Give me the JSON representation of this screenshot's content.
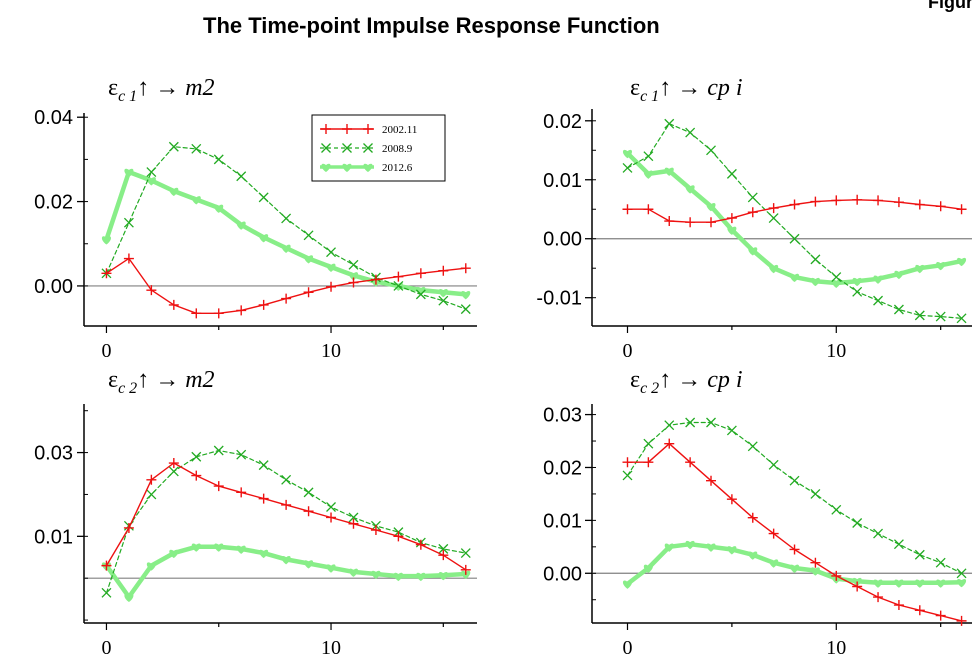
{
  "page": {
    "title": "The Time-point Impulse Response Function",
    "corner_label": "Figur"
  },
  "colors": {
    "series_2002_11": "#ee1111",
    "series_2008_9": "#22aa22",
    "series_2012_6": "#88ee88",
    "zero_line": "#808080"
  },
  "legend": {
    "placement": "top-right of first panel",
    "entries": [
      {
        "label": "2002.11",
        "color": "#ee1111",
        "marker": "plus",
        "dash": "solid"
      },
      {
        "label": "2008.9",
        "color": "#22aa22",
        "marker": "cross",
        "dash": "dashed"
      },
      {
        "label": "2012.6",
        "color": "#88ee88",
        "marker": "heart",
        "dash": "thick"
      }
    ]
  },
  "chart_data": [
    {
      "type": "line",
      "title": "ε_c1 ↑ → m2",
      "title_parts": {
        "eps": "ε",
        "sub": "c 1",
        "arrow": "↑ →",
        "var": "m2"
      },
      "x": [
        0,
        1,
        2,
        3,
        4,
        5,
        6,
        7,
        8,
        9,
        10,
        11,
        12,
        13,
        14,
        15,
        16
      ],
      "xticks": [
        0,
        10
      ],
      "xlim": [
        -1,
        16.5
      ],
      "ylim": [
        -0.0095,
        0.041
      ],
      "yticks": [
        0.0,
        0.02,
        0.04
      ],
      "ytick_labels": [
        "0.00",
        "0.02",
        "0.04"
      ],
      "zero_line": true,
      "series": [
        {
          "name": "2002.11",
          "values": [
            0.003,
            0.0065,
            -0.001,
            -0.0045,
            -0.0065,
            -0.0065,
            -0.0058,
            -0.0045,
            -0.003,
            -0.0015,
            -0.0002,
            0.0008,
            0.0015,
            0.0022,
            0.003,
            0.0036,
            0.0042
          ]
        },
        {
          "name": "2008.9",
          "values": [
            0.003,
            0.015,
            0.027,
            0.033,
            0.0325,
            0.03,
            0.026,
            0.021,
            0.016,
            0.012,
            0.008,
            0.005,
            0.002,
            0.0,
            -0.002,
            -0.0035,
            -0.0055
          ]
        },
        {
          "name": "2012.6",
          "values": [
            0.011,
            0.027,
            0.025,
            0.0225,
            0.0205,
            0.0185,
            0.0145,
            0.0115,
            0.009,
            0.0065,
            0.0045,
            0.0025,
            0.001,
            0.0,
            -0.001,
            -0.0015,
            -0.002
          ]
        }
      ]
    },
    {
      "type": "line",
      "title": "ε_c1 ↑ → cpi",
      "title_parts": {
        "eps": "ε",
        "sub": "c 1",
        "arrow": "↑ →",
        "var": "cp i"
      },
      "x": [
        0,
        1,
        2,
        3,
        4,
        5,
        6,
        7,
        8,
        9,
        10,
        11,
        12,
        13,
        14,
        15,
        16
      ],
      "xticks": [
        0,
        10
      ],
      "xlim": [
        -1.7,
        16.5
      ],
      "ylim": [
        -0.0148,
        0.022
      ],
      "yticks": [
        -0.01,
        0.0,
        0.01,
        0.02
      ],
      "ytick_labels": [
        "-0.01",
        "0.00",
        "0.01",
        "0.02"
      ],
      "zero_line": true,
      "series": [
        {
          "name": "2002.11",
          "values": [
            0.005,
            0.005,
            0.003,
            0.0028,
            0.0028,
            0.0035,
            0.0045,
            0.0052,
            0.0058,
            0.0063,
            0.0065,
            0.0066,
            0.0065,
            0.0062,
            0.0058,
            0.0055,
            0.005
          ]
        },
        {
          "name": "2008.9",
          "values": [
            0.012,
            0.014,
            0.0195,
            0.018,
            0.015,
            0.011,
            0.007,
            0.0035,
            0.0,
            -0.0035,
            -0.0065,
            -0.009,
            -0.0105,
            -0.012,
            -0.013,
            -0.0132,
            -0.0135
          ]
        },
        {
          "name": "2012.6",
          "values": [
            0.0145,
            0.011,
            0.0115,
            0.0085,
            0.0055,
            0.0015,
            -0.002,
            -0.005,
            -0.0065,
            -0.0072,
            -0.0075,
            -0.0072,
            -0.0068,
            -0.006,
            -0.005,
            -0.0045,
            -0.0038
          ]
        }
      ]
    },
    {
      "type": "line",
      "title": "ε_c2 ↑ → m2",
      "title_parts": {
        "eps": "ε",
        "sub": "c 2",
        "arrow": "↑ →",
        "var": "m2"
      },
      "x": [
        0,
        1,
        2,
        3,
        4,
        5,
        6,
        7,
        8,
        9,
        10,
        11,
        12,
        13,
        14,
        15,
        16
      ],
      "xticks": [
        0,
        10
      ],
      "xlim": [
        -1,
        16.5
      ],
      "ylim": [
        -0.0107,
        0.0416
      ],
      "yticks": [
        0.01,
        0.03
      ],
      "ytick_labels": [
        "0.01",
        "0.03"
      ],
      "zero_line": true,
      "series": [
        {
          "name": "2002.11",
          "values": [
            0.003,
            0.012,
            0.0235,
            0.0275,
            0.0245,
            0.022,
            0.0205,
            0.019,
            0.0175,
            0.016,
            0.0145,
            0.013,
            0.0115,
            0.01,
            0.008,
            0.0055,
            0.002
          ]
        },
        {
          "name": "2008.9",
          "values": [
            -0.0035,
            0.0125,
            0.02,
            0.0255,
            0.029,
            0.0305,
            0.0295,
            0.027,
            0.0235,
            0.0205,
            0.017,
            0.0145,
            0.0125,
            0.011,
            0.0085,
            0.007,
            0.006
          ]
        },
        {
          "name": "2012.6",
          "values": [
            0.003,
            -0.0045,
            0.003,
            0.006,
            0.0075,
            0.0075,
            0.007,
            0.006,
            0.0045,
            0.0035,
            0.0025,
            0.0015,
            0.001,
            0.0005,
            0.0005,
            0.0007,
            0.001
          ]
        }
      ]
    },
    {
      "type": "line",
      "title": "ε_c2 ↑ → cpi",
      "title_parts": {
        "eps": "ε",
        "sub": "c 2",
        "arrow": "↑ →",
        "var": "cp i"
      },
      "x": [
        0,
        1,
        2,
        3,
        4,
        5,
        6,
        7,
        8,
        9,
        10,
        11,
        12,
        13,
        14,
        15,
        16
      ],
      "xticks": [
        0,
        10
      ],
      "xlim": [
        -1.7,
        16.5
      ],
      "ylim": [
        -0.0094,
        0.032
      ],
      "yticks": [
        0.0,
        0.01,
        0.02,
        0.03
      ],
      "ytick_labels": [
        "0.00",
        "0.01",
        "0.02",
        "0.03"
      ],
      "zero_line": true,
      "series": [
        {
          "name": "2002.11",
          "values": [
            0.021,
            0.021,
            0.0245,
            0.021,
            0.0175,
            0.014,
            0.0105,
            0.0075,
            0.0045,
            0.002,
            -0.0005,
            -0.0025,
            -0.0045,
            -0.006,
            -0.007,
            -0.008,
            -0.009
          ]
        },
        {
          "name": "2008.9",
          "values": [
            0.0185,
            0.0245,
            0.028,
            0.0285,
            0.0285,
            0.027,
            0.024,
            0.0205,
            0.0175,
            0.015,
            0.012,
            0.0095,
            0.0075,
            0.0055,
            0.0035,
            0.002,
            0.0
          ]
        },
        {
          "name": "2012.6",
          "values": [
            -0.002,
            0.001,
            0.005,
            0.0055,
            0.005,
            0.0045,
            0.0035,
            0.002,
            0.001,
            0.0005,
            -0.001,
            -0.0015,
            -0.0018,
            -0.0018,
            -0.0018,
            -0.0018,
            -0.0017
          ]
        }
      ]
    }
  ]
}
